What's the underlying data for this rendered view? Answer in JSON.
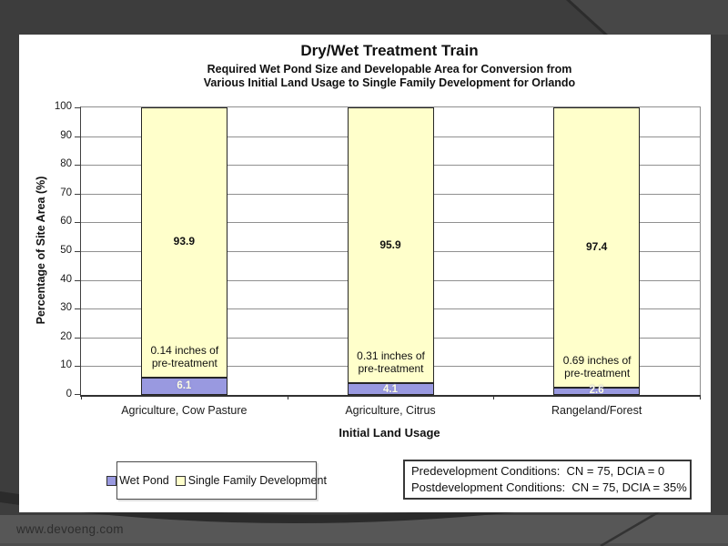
{
  "page": {
    "watermark": "www.devoeng.com"
  },
  "slide": {
    "title": "Dry/Wet Treatment Train",
    "subtitle_line1": "Required Wet Pond Size and Developable Area for Conversion from",
    "subtitle_line2": "Various Initial Land Usage to Single Family Development for Orlando"
  },
  "chart_data": {
    "type": "bar",
    "stacked": true,
    "title": "Dry/Wet Treatment Train",
    "subtitle": "Required Wet Pond Size and Developable Area for Conversion from Various Initial Land Usage to Single Family Development for Orlando",
    "categories": [
      "Agriculture, Cow Pasture",
      "Agriculture, Citrus",
      "Rangeland/Forest"
    ],
    "series": [
      {
        "name": "Wet Pond",
        "color": "#9999E0",
        "values": [
          6.1,
          4.1,
          2.6
        ]
      },
      {
        "name": "Single Family Development",
        "color": "#FFFFCB",
        "values": [
          93.9,
          95.9,
          97.4
        ]
      }
    ],
    "annotations": [
      {
        "line1": "0.14 inches of",
        "line2": "pre-treatment"
      },
      {
        "line1": "0.31 inches of",
        "line2": "pre-treatment"
      },
      {
        "line1": "0.69 inches of",
        "line2": "pre-treatment"
      }
    ],
    "xlabel": "Initial Land Usage",
    "ylabel": "Percentage of Site Area (%)",
    "ylim": [
      0,
      100
    ],
    "ytick_step": 10,
    "grid": true,
    "legend_position": "bottom-left"
  },
  "legend": {
    "items": [
      {
        "label": "Wet Pond",
        "color": "#9999E0"
      },
      {
        "label": "Single Family Development",
        "color": "#FFFFCB"
      }
    ]
  },
  "conditions_box": {
    "line1": "Predevelopment Conditions:  CN = 75, DCIA = 0",
    "line2": "Postdevelopment Conditions:  CN = 75, DCIA = 35%"
  },
  "colors": {
    "background": "#3d3d3d",
    "footer_band": "#575757",
    "slide": "#ffffff",
    "wet_pond": "#9999E0",
    "single_family": "#FFFFCB"
  }
}
